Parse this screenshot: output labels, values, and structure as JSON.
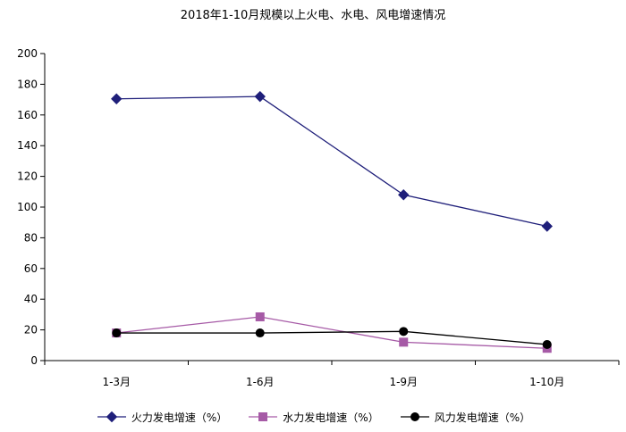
{
  "chart_data": {
    "type": "line",
    "title": "2018年1-10月规模以上火电、水电、风电增速情况",
    "categories": [
      "1-3月",
      "1-6月",
      "1-9月",
      "1-10月"
    ],
    "ylim": [
      0,
      200
    ],
    "yticks": [
      0,
      20,
      40,
      60,
      80,
      100,
      120,
      140,
      160,
      180,
      200
    ],
    "grid": false,
    "legend": "bottom",
    "series": [
      {
        "name": "火力发电增速（%）",
        "values": [
          170.5,
          172,
          108,
          87.5
        ],
        "color": "#1f1f7a",
        "marker": "diamond"
      },
      {
        "name": "水力发电增速（%）",
        "values": [
          18,
          28.5,
          12,
          8
        ],
        "color": "#a65aa6",
        "marker": "square"
      },
      {
        "name": "风力发电增速（%）",
        "values": [
          18,
          18,
          19,
          10.5
        ],
        "color": "#000000",
        "marker": "circle"
      }
    ]
  }
}
